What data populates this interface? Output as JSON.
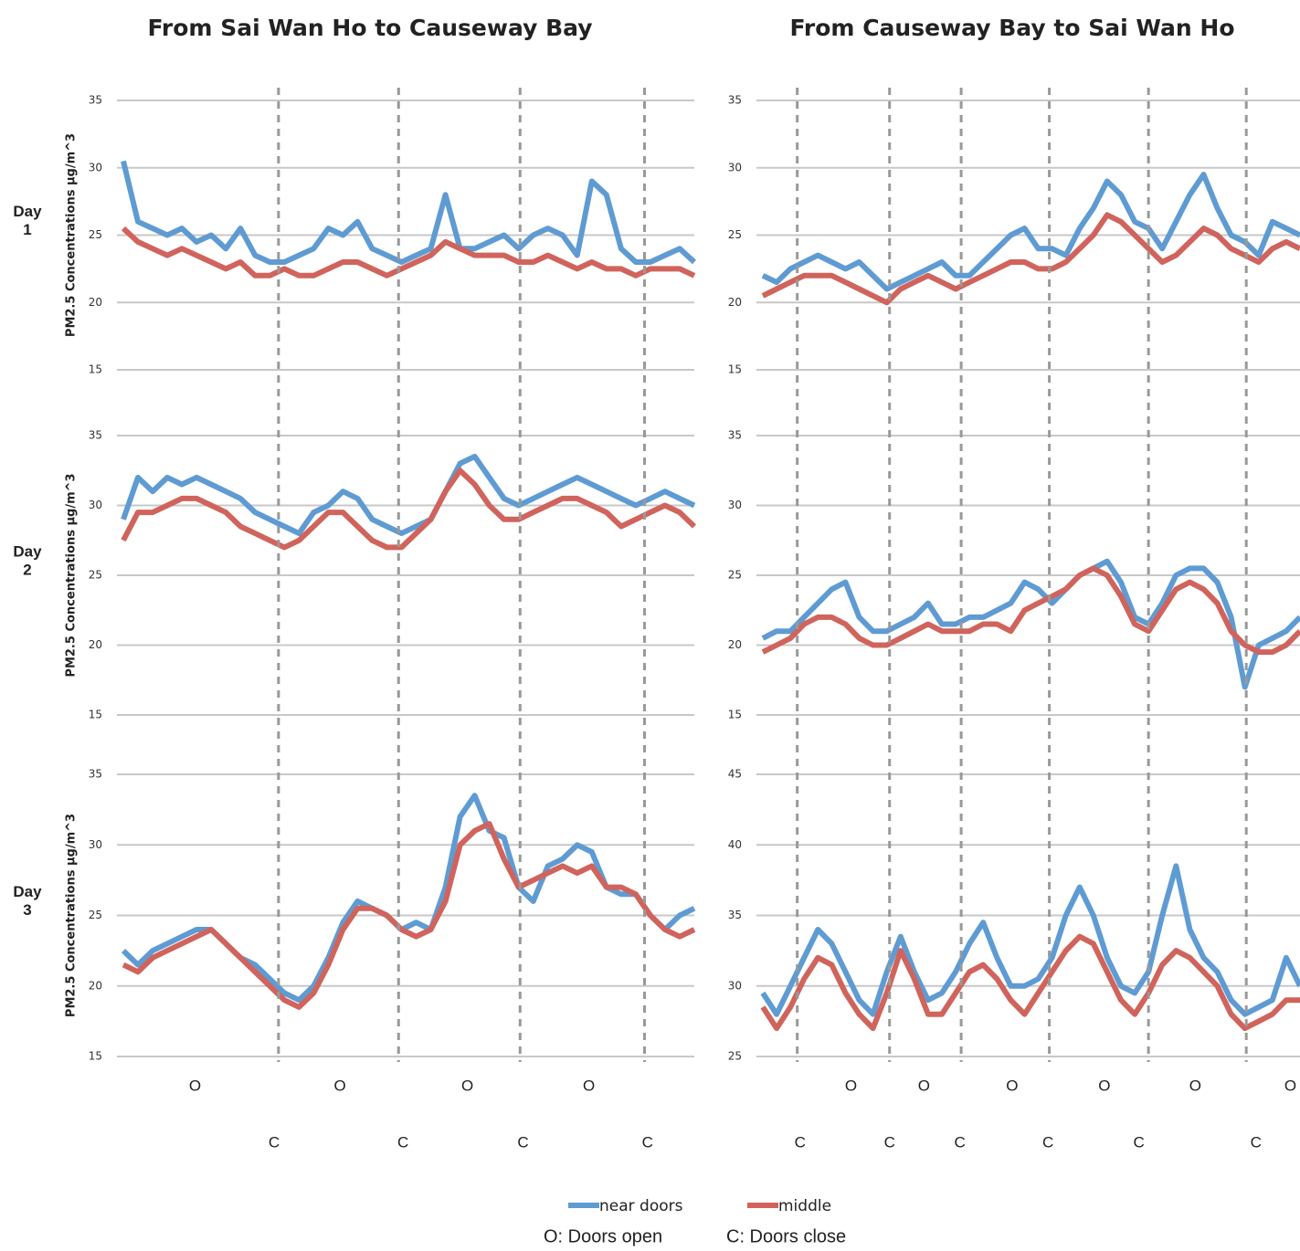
{
  "chart_data": [
    {
      "type": "line",
      "title": "From Sai Wan Ho to Causeway Bay",
      "ylabel": "PM2.5 Concentrations µg/m^3",
      "row_label": [
        "Day",
        "1"
      ],
      "xlim": [
        0,
        39
      ],
      "ylim": [
        15,
        35
      ],
      "yticks": [
        15,
        20,
        25,
        30,
        35
      ],
      "grid": true,
      "series": [
        {
          "name": "near doors",
          "color": "#5f9bd3",
          "values": [
            30.5,
            26,
            25.5,
            25,
            25.5,
            24.5,
            25,
            24,
            25.5,
            23.5,
            23,
            23,
            23.5,
            24,
            25.5,
            25,
            26,
            24,
            23.5,
            23,
            23.5,
            24,
            28,
            24,
            24,
            24.5,
            25,
            24,
            25,
            25.5,
            25,
            23.5,
            29,
            28,
            24,
            23,
            23,
            23.5,
            24,
            23
          ]
        },
        {
          "name": "middle",
          "color": "#d0645c",
          "values": [
            25.5,
            24.5,
            24,
            23.5,
            24,
            23.5,
            23,
            22.5,
            23,
            22,
            22,
            22.5,
            22,
            22,
            22.5,
            23,
            23,
            22.5,
            22,
            22.5,
            23,
            23.5,
            24.5,
            24,
            23.5,
            23.5,
            23.5,
            23,
            23,
            23.5,
            23,
            22.5,
            23,
            22.5,
            22.5,
            22,
            22.5,
            22.5,
            22.5,
            22
          ]
        }
      ]
    },
    {
      "type": "line",
      "ylabel": "PM2.5 Concentrations µg/m^3",
      "row_label": [
        "Day",
        "2"
      ],
      "xlim": [
        0,
        39
      ],
      "ylim": [
        15,
        35
      ],
      "yticks": [
        15,
        20,
        25,
        30,
        35
      ],
      "grid": true,
      "series": [
        {
          "name": "near doors",
          "color": "#5f9bd3",
          "values": [
            29,
            32,
            31,
            32,
            31.5,
            32,
            31.5,
            31,
            30.5,
            29.5,
            29,
            28.5,
            28,
            29.5,
            30,
            31,
            30.5,
            29,
            28.5,
            28,
            28.5,
            29,
            31,
            33,
            33.5,
            32,
            30.5,
            30,
            30.5,
            31,
            31.5,
            32,
            31.5,
            31,
            30.5,
            30,
            30.5,
            31,
            30.5,
            30
          ]
        },
        {
          "name": "middle",
          "color": "#d0645c",
          "values": [
            27.5,
            29.5,
            29.5,
            30,
            30.5,
            30.5,
            30,
            29.5,
            28.5,
            28,
            27.5,
            27,
            27.5,
            28.5,
            29.5,
            29.5,
            28.5,
            27.5,
            27,
            27,
            28,
            29,
            31,
            32.5,
            31.5,
            30,
            29,
            29,
            29.5,
            30,
            30.5,
            30.5,
            30,
            29.5,
            28.5,
            29,
            29.5,
            30,
            29.5,
            28.5
          ]
        }
      ]
    },
    {
      "type": "line",
      "ylabel": "PM2.5 Concentrations µg/m^3",
      "row_label": [
        "Day",
        "3"
      ],
      "xlim": [
        0,
        39
      ],
      "ylim": [
        15,
        35
      ],
      "yticks": [
        15,
        20,
        25,
        30,
        35
      ],
      "grid": true,
      "vlines": [
        10.6,
        18.8,
        27.1,
        35.6
      ],
      "open_labels": [
        {
          "text": "O",
          "x": 4.9
        },
        {
          "text": "O",
          "x": 14.8
        },
        {
          "text": "O",
          "x": 23.5
        },
        {
          "text": "O",
          "x": 31.8
        }
      ],
      "close_labels": [
        {
          "text": "C",
          "x": 10.3
        },
        {
          "text": "C",
          "x": 19.1
        },
        {
          "text": "C",
          "x": 27.3
        },
        {
          "text": "C",
          "x": 35.8
        }
      ],
      "series": [
        {
          "name": "near doors",
          "color": "#5f9bd3",
          "values": [
            22.5,
            21.5,
            22.5,
            23,
            23.5,
            24,
            24,
            23,
            22,
            21.5,
            20.5,
            19.5,
            19,
            20,
            22,
            24.5,
            26,
            25.5,
            25,
            24,
            24.5,
            24,
            27,
            32,
            33.5,
            31,
            30.5,
            27,
            26,
            28.5,
            29,
            30,
            29.5,
            27,
            26.5,
            26.5,
            25,
            24,
            25,
            25.5
          ]
        },
        {
          "name": "middle",
          "color": "#d0645c",
          "values": [
            21.5,
            21,
            22,
            22.5,
            23,
            23.5,
            24,
            23,
            22,
            21,
            20,
            19,
            18.5,
            19.5,
            21.5,
            24,
            25.5,
            25.5,
            25,
            24,
            23.5,
            24,
            26,
            30,
            31,
            31.5,
            29,
            27,
            27.5,
            28,
            28.5,
            28,
            28.5,
            27,
            27,
            26.5,
            25,
            24,
            23.5,
            24
          ]
        }
      ]
    },
    {
      "type": "line",
      "title": "From Causeway Bay to Sai Wan Ho",
      "xlim": [
        0,
        39
      ],
      "ylim": [
        15,
        35
      ],
      "yticks": [
        15,
        20,
        25,
        30,
        35
      ],
      "grid": true,
      "series": [
        {
          "name": "near doors",
          "color": "#5f9bd3",
          "values": [
            22,
            21.5,
            22.5,
            23,
            23.5,
            23,
            22.5,
            23,
            22,
            21,
            21.5,
            22,
            22.5,
            23,
            22,
            22,
            23,
            24,
            25,
            25.5,
            24,
            24,
            23.5,
            25.5,
            27,
            29,
            28,
            26,
            25.5,
            24,
            26,
            28,
            29.5,
            27,
            25,
            24.5,
            23.5,
            26,
            25.5,
            25
          ]
        },
        {
          "name": "middle",
          "color": "#d0645c",
          "values": [
            20.5,
            21,
            21.5,
            22,
            22,
            22,
            21.5,
            21,
            20.5,
            20,
            21,
            21.5,
            22,
            21.5,
            21,
            21.5,
            22,
            22.5,
            23,
            23,
            22.5,
            22.5,
            23,
            24,
            25,
            26.5,
            26,
            25,
            24,
            23,
            23.5,
            24.5,
            25.5,
            25,
            24,
            23.5,
            23,
            24,
            24.5,
            24
          ]
        }
      ]
    },
    {
      "type": "line",
      "xlim": [
        0,
        39
      ],
      "ylim": [
        15,
        35
      ],
      "yticks": [
        15,
        20,
        25,
        30,
        35
      ],
      "grid": true,
      "series": [
        {
          "name": "near doors",
          "color": "#5f9bd3",
          "values": [
            20.5,
            21,
            21,
            22,
            23,
            24,
            24.5,
            22,
            21,
            21,
            21.5,
            22,
            23,
            21.5,
            21.5,
            22,
            22,
            22.5,
            23,
            24.5,
            24,
            23,
            24,
            25,
            25.5,
            26,
            24.5,
            22,
            21.5,
            23,
            25,
            25.5,
            25.5,
            24.5,
            22,
            17,
            20,
            20.5,
            21,
            22
          ]
        },
        {
          "name": "middle",
          "color": "#d0645c",
          "values": [
            19.5,
            20,
            20.5,
            21.5,
            22,
            22,
            21.5,
            20.5,
            20,
            20,
            20.5,
            21,
            21.5,
            21,
            21,
            21,
            21.5,
            21.5,
            21,
            22.5,
            23,
            23.5,
            24,
            25,
            25.5,
            25,
            23.5,
            21.5,
            21,
            22.5,
            24,
            24.5,
            24,
            23,
            21,
            20,
            19.5,
            19.5,
            20,
            21
          ]
        }
      ]
    },
    {
      "type": "line",
      "xlim": [
        0,
        39
      ],
      "ylim": [
        25,
        45
      ],
      "yticks": [
        25,
        30,
        35,
        40,
        45
      ],
      "grid": true,
      "vlines": [
        2.5,
        9.2,
        14.4,
        20.8,
        28.0,
        35.1
      ],
      "open_labels": [
        {
          "text": "O",
          "x": 6.4
        },
        {
          "text": "O",
          "x": 11.7
        },
        {
          "text": "O",
          "x": 18.1
        },
        {
          "text": "O",
          "x": 24.8
        },
        {
          "text": "O",
          "x": 31.4
        },
        {
          "text": "O",
          "x": 38.3
        }
      ],
      "close_labels": [
        {
          "text": "C",
          "x": 2.7
        },
        {
          "text": "C",
          "x": 9.2
        },
        {
          "text": "C",
          "x": 14.3
        },
        {
          "text": "C",
          "x": 20.7
        },
        {
          "text": "C",
          "x": 27.3
        },
        {
          "text": "C",
          "x": 35.8
        }
      ],
      "series": [
        {
          "name": "near doors",
          "color": "#5f9bd3",
          "values": [
            29.5,
            28,
            30,
            32,
            34,
            33,
            31,
            29,
            28,
            31,
            33.5,
            31,
            29,
            29.5,
            31,
            33,
            34.5,
            32,
            30,
            30,
            30.5,
            32,
            35,
            37,
            35,
            32,
            30,
            29.5,
            31,
            35,
            38.5,
            34,
            32,
            31,
            29,
            28,
            28.5,
            29,
            32,
            30
          ]
        },
        {
          "name": "middle",
          "color": "#d0645c",
          "values": [
            28.5,
            27,
            28.5,
            30.5,
            32,
            31.5,
            29.5,
            28,
            27,
            29.5,
            32.5,
            30.5,
            28,
            28,
            29.5,
            31,
            31.5,
            30.5,
            29,
            28,
            29.5,
            31,
            32.5,
            33.5,
            33,
            31,
            29,
            28,
            29.5,
            31.5,
            32.5,
            32,
            31,
            30,
            28,
            27,
            27.5,
            28,
            29,
            29
          ]
        }
      ]
    }
  ],
  "note": [
    "O: Doors open",
    "C: Doors close"
  ]
}
